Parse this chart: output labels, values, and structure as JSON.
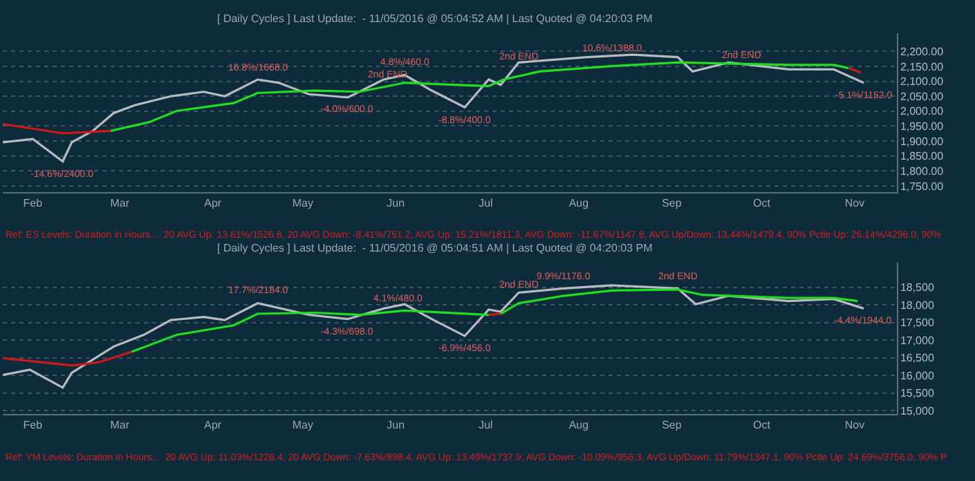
{
  "chart_data": [
    {
      "type": "line",
      "title": "[ Daily Cycles ] Last Update:  - 11/05/2016 @ 05:04:52 AM | Last Quoted @ 04:20:03 PM",
      "xlim": [
        "2016-01-22",
        "2016-11-15"
      ],
      "xticks": [
        {
          "value": "2016-02-01",
          "label": "Feb"
        },
        {
          "value": "2016-03-01",
          "label": "Mar"
        },
        {
          "value": "2016-04-01",
          "label": "Apr"
        },
        {
          "value": "2016-05-01",
          "label": "May"
        },
        {
          "value": "2016-06-01",
          "label": "Jun"
        },
        {
          "value": "2016-07-01",
          "label": "Jul"
        },
        {
          "value": "2016-08-01",
          "label": "Aug"
        },
        {
          "value": "2016-09-01",
          "label": "Sep"
        },
        {
          "value": "2016-10-01",
          "label": "Oct"
        },
        {
          "value": "2016-11-01",
          "label": "Nov"
        }
      ],
      "ylim": [
        1730,
        2260
      ],
      "yticks": [
        {
          "value": 1750,
          "label": "1,750.00"
        },
        {
          "value": 1800,
          "label": "1,800.00"
        },
        {
          "value": 1850,
          "label": "1,850.00"
        },
        {
          "value": 1900,
          "label": "1,900.00"
        },
        {
          "value": 1950,
          "label": "1,950.00"
        },
        {
          "value": 2000,
          "label": "2,000.00"
        },
        {
          "value": 2050,
          "label": "2,050.00"
        },
        {
          "value": 2100,
          "label": "2,100.00"
        },
        {
          "value": 2150,
          "label": "2,150.00"
        },
        {
          "value": 2200,
          "label": "2,200.00"
        }
      ],
      "grid": "y",
      "series": [
        {
          "color": "#b8bcc0",
          "x": [
            "2016-01-22",
            "2016-02-01",
            "2016-02-11",
            "2016-02-14",
            "2016-02-21",
            "2016-02-28",
            "2016-03-06",
            "2016-03-18",
            "2016-03-29",
            "2016-04-05",
            "2016-04-16",
            "2016-04-23",
            "2016-05-03",
            "2016-05-16",
            "2016-05-28",
            "2016-06-04",
            "2016-06-13",
            "2016-06-24",
            "2016-07-02",
            "2016-07-06",
            "2016-07-12",
            "2016-08-04",
            "2016-08-19",
            "2016-09-03",
            "2016-09-08",
            "2016-09-20",
            "2016-10-10",
            "2016-10-25",
            "2016-11-04"
          ],
          "values": [
            1896,
            1907,
            1832,
            1896,
            1934,
            1994,
            2020,
            2050,
            2065,
            2050,
            2106,
            2095,
            2057,
            2046,
            2106,
            2121,
            2069,
            2013,
            2106,
            2088,
            2163,
            2181,
            2189,
            2181,
            2133,
            2163,
            2140,
            2140,
            2095
          ]
        },
        {
          "color": "#cc1a1a",
          "x": [
            "2016-01-22",
            "2016-02-11",
            "2016-02-27"
          ],
          "values": [
            1957,
            1926,
            1934
          ]
        },
        {
          "color": "#22dd22",
          "x": [
            "2016-02-27",
            "2016-03-11",
            "2016-03-20",
            "2016-04-08",
            "2016-04-16",
            "2016-05-05",
            "2016-05-20",
            "2016-06-04",
            "2016-07-02",
            "2016-07-07",
            "2016-07-19",
            "2016-08-12",
            "2016-09-03",
            "2016-10-10",
            "2016-10-25",
            "2016-10-30"
          ],
          "values": [
            1934,
            1964,
            2001,
            2027,
            2061,
            2069,
            2065,
            2095,
            2084,
            2106,
            2133,
            2151,
            2163,
            2155,
            2155,
            2144
          ]
        },
        {
          "color": "#cc1a1a",
          "x": [
            "2016-10-30",
            "2016-11-03"
          ],
          "values": [
            2144,
            2129
          ]
        }
      ],
      "annotations": [
        {
          "text": "16.8%/1668.0",
          "x": "2016-04-16",
          "y": 2106
        },
        {
          "text": "4.8%/460.0",
          "x": "2016-06-04",
          "y": 2121
        },
        {
          "text": "2nd END",
          "x": "2016-05-29",
          "y": 2121
        },
        {
          "text": "-4.0%/600.0",
          "x": "2016-05-16",
          "y": 2046
        },
        {
          "text": "-8.8%/400.0",
          "x": "2016-06-24",
          "y": 2013
        },
        {
          "text": "-14.6%/2400.0",
          "x": "2016-02-11",
          "y": 1832
        },
        {
          "text": "10.6%/1388.0",
          "x": "2016-08-12",
          "y": 2211
        },
        {
          "text": "2nd END",
          "x": "2016-07-12",
          "y": 2181
        },
        {
          "text": "2nd END",
          "x": "2016-09-24",
          "y": 2185
        },
        {
          "text": "-5.1%/1152.0",
          "x": "2016-11-04",
          "y": 2095
        },
        "Ref: ES Levels: Duration in Hours...  20 AVG Up: 13.61%/1526.8, 20 AVG Down: -8.41%/751.2, AVG Up: 15.21%/1811.3, AVG Down: -11.67%/1147.6, AVG Up/Down: 13.44%/1479.4, 90% Pctle Up: 26.14%/4296.0, 90%"
      ]
    },
    {
      "type": "line",
      "title": "[ Daily Cycles ] Last Update:  - 11/05/2016 @ 05:04:51 AM | Last Quoted @ 04:20:03 PM",
      "xlim": [
        "2016-01-22",
        "2016-11-15"
      ],
      "xticks": [
        {
          "value": "2016-02-01",
          "label": "Feb"
        },
        {
          "value": "2016-03-01",
          "label": "Mar"
        },
        {
          "value": "2016-04-01",
          "label": "Apr"
        },
        {
          "value": "2016-05-01",
          "label": "May"
        },
        {
          "value": "2016-06-01",
          "label": "Jun"
        },
        {
          "value": "2016-07-01",
          "label": "Jul"
        },
        {
          "value": "2016-08-01",
          "label": "Aug"
        },
        {
          "value": "2016-09-01",
          "label": "Sep"
        },
        {
          "value": "2016-10-01",
          "label": "Oct"
        },
        {
          "value": "2016-11-01",
          "label": "Nov"
        }
      ],
      "ylim": [
        14900,
        19200
      ],
      "yticks": [
        {
          "value": 15000,
          "label": "15,000"
        },
        {
          "value": 15500,
          "label": "15,500"
        },
        {
          "value": 16000,
          "label": "16,000"
        },
        {
          "value": 16500,
          "label": "16,500"
        },
        {
          "value": 17000,
          "label": "17,000"
        },
        {
          "value": 17500,
          "label": "17,500"
        },
        {
          "value": 18000,
          "label": "18,000"
        },
        {
          "value": 18500,
          "label": "18,500"
        }
      ],
      "grid": "y",
      "series": [
        {
          "color": "#b8bcc0",
          "x": [
            "2016-01-22",
            "2016-01-31",
            "2016-02-11",
            "2016-02-14",
            "2016-02-28",
            "2016-03-09",
            "2016-03-18",
            "2016-03-29",
            "2016-04-05",
            "2016-04-16",
            "2016-05-03",
            "2016-05-16",
            "2016-05-28",
            "2016-06-04",
            "2016-06-13",
            "2016-06-24",
            "2016-07-02",
            "2016-07-06",
            "2016-07-12",
            "2016-07-27",
            "2016-08-12",
            "2016-09-03",
            "2016-09-09",
            "2016-09-20",
            "2016-10-10",
            "2016-10-25",
            "2016-11-04"
          ],
          "values": [
            16010,
            16160,
            15650,
            16070,
            16820,
            17150,
            17570,
            17660,
            17570,
            18050,
            17720,
            17600,
            17900,
            18020,
            17600,
            17120,
            17870,
            17810,
            18350,
            18470,
            18560,
            18470,
            18020,
            18260,
            18110,
            18170,
            17900
          ]
        },
        {
          "color": "#cc1a1a",
          "x": [
            "2016-01-22",
            "2016-02-14",
            "2016-02-23",
            "2016-03-05"
          ],
          "values": [
            16490,
            16280,
            16370,
            16670
          ]
        },
        {
          "color": "#22dd22",
          "x": [
            "2016-03-05",
            "2016-03-20",
            "2016-04-08",
            "2016-04-16",
            "2016-05-05",
            "2016-05-20",
            "2016-06-04",
            "2016-07-02"
          ],
          "values": [
            16670,
            17150,
            17420,
            17750,
            17780,
            17720,
            17840,
            17720
          ]
        },
        {
          "color": "#cc1a1a",
          "x": [
            "2016-07-02",
            "2016-07-06"
          ],
          "values": [
            17720,
            17750
          ]
        },
        {
          "color": "#22dd22",
          "x": [
            "2016-07-06",
            "2016-07-12",
            "2016-07-27",
            "2016-08-12",
            "2016-09-03",
            "2016-09-11",
            "2016-10-10",
            "2016-10-25",
            "2016-11-02"
          ],
          "values": [
            17750,
            18050,
            18260,
            18410,
            18440,
            18290,
            18200,
            18200,
            18110
          ]
        }
      ],
      "annotations": [
        {
          "text": "17.7%/2184.0",
          "x": "2016-04-16",
          "y": 18050
        },
        {
          "text": "4.1%/480.0",
          "x": "2016-06-02",
          "y": 18170
        },
        {
          "text": "-4.3%/698.0",
          "x": "2016-05-16",
          "y": 17600
        },
        {
          "text": "-6.9%/456.0",
          "x": "2016-06-24",
          "y": 17120
        },
        {
          "text": "9.9%/1176.0",
          "x": "2016-07-27",
          "y": 18470
        },
        {
          "text": "2nd END",
          "x": "2016-07-12",
          "y": 18560
        },
        {
          "text": "2nd END",
          "x": "2016-09-03",
          "y": 18470
        },
        {
          "text": "-4.4%/1944.0",
          "x": "2016-11-04",
          "y": 17900
        },
        "Ref: YM Levels: Duration in Hours...  20 AVG Up: 11.03%/1226.4, 20 AVG Down: -7.63%/898.4, AVG Up: 13.49%/1737.9, AVG Down: -10.09%/956.3, AVG Up/Down: 11.79%/1347.1, 90% Pctle Up: 24.69%/3756.0, 90% P"
      ]
    }
  ]
}
